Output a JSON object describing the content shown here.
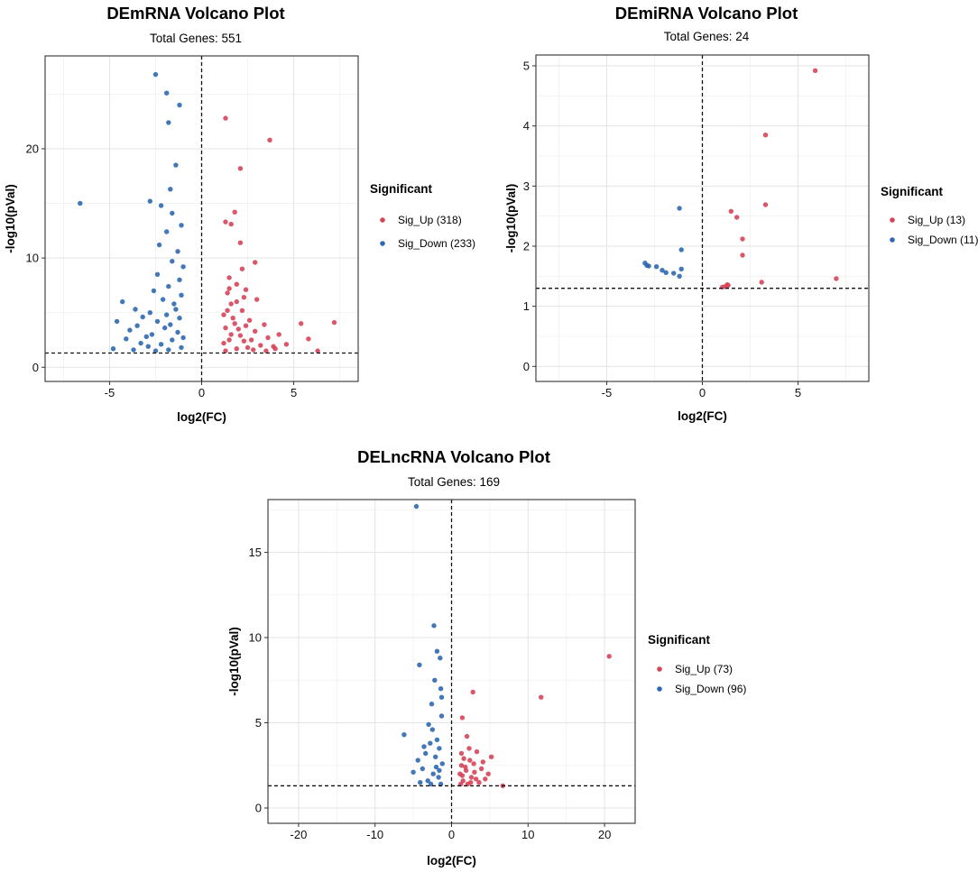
{
  "chart_data": [
    {
      "type": "scatter",
      "title": "DEmRNA Volcano Plot",
      "subtitle": "Total Genes: 551",
      "xlabel": "log2(FC)",
      "ylabel": "-log10(pVal)",
      "xlim": [
        -8.5,
        8.5
      ],
      "ylim": [
        -1.3,
        28.5
      ],
      "xticks": [
        -5,
        0,
        5
      ],
      "yticks": [
        0,
        10,
        20
      ],
      "threshold_x": 0,
      "threshold_y": 1.3,
      "legend_title": "Significant",
      "legend_position": "right",
      "series": [
        {
          "name": "Sig_Up",
          "label": "Sig_Up (318)",
          "color": "#d64458",
          "points": [
            [
              1.3,
              22.8
            ],
            [
              3.7,
              20.8
            ],
            [
              2.1,
              18.2
            ],
            [
              1.8,
              14.2
            ],
            [
              1.3,
              13.3
            ],
            [
              1.6,
              13.1
            ],
            [
              2.1,
              11.4
            ],
            [
              2.9,
              9.6
            ],
            [
              2.2,
              9.0
            ],
            [
              1.5,
              8.2
            ],
            [
              1.9,
              7.6
            ],
            [
              2.4,
              7.1
            ],
            [
              1.4,
              6.8
            ],
            [
              3.0,
              6.2
            ],
            [
              1.6,
              5.8
            ],
            [
              2.2,
              5.2
            ],
            [
              1.2,
              4.8
            ],
            [
              1.7,
              4.5
            ],
            [
              2.6,
              4.3
            ],
            [
              3.4,
              3.9
            ],
            [
              1.3,
              3.6
            ],
            [
              2.0,
              3.5
            ],
            [
              2.9,
              3.3
            ],
            [
              4.2,
              3.0
            ],
            [
              3.6,
              2.7
            ],
            [
              1.5,
              2.5
            ],
            [
              2.3,
              2.4
            ],
            [
              5.4,
              4.0
            ],
            [
              7.2,
              4.1
            ],
            [
              5.8,
              2.6
            ],
            [
              6.3,
              1.5
            ],
            [
              4.6,
              2.1
            ],
            [
              3.2,
              2.0
            ],
            [
              2.5,
              1.8
            ],
            [
              1.9,
              1.7
            ],
            [
              1.3,
              1.5
            ],
            [
              2.8,
              1.6
            ],
            [
              3.9,
              1.9
            ],
            [
              1.6,
              3.0
            ],
            [
              2.1,
              2.9
            ],
            [
              1.2,
              2.2
            ],
            [
              2.7,
              2.5
            ],
            [
              3.5,
              1.5
            ],
            [
              4.0,
              1.7
            ],
            [
              1.8,
              4.0
            ],
            [
              2.4,
              3.8
            ],
            [
              1.4,
              5.2
            ],
            [
              1.9,
              6.0
            ],
            [
              2.3,
              6.4
            ],
            [
              1.5,
              7.2
            ]
          ]
        },
        {
          "name": "Sig_Down",
          "label": "Sig_Down (233)",
          "color": "#2e68b0",
          "points": [
            [
              -2.5,
              26.8
            ],
            [
              -1.9,
              25.1
            ],
            [
              -1.2,
              24.0
            ],
            [
              -1.8,
              22.4
            ],
            [
              -1.4,
              18.5
            ],
            [
              -1.7,
              16.3
            ],
            [
              -2.2,
              14.8
            ],
            [
              -2.8,
              15.2
            ],
            [
              -6.6,
              15.0
            ],
            [
              -1.6,
              14.1
            ],
            [
              -1.1,
              13.0
            ],
            [
              -1.9,
              12.4
            ],
            [
              -2.3,
              11.2
            ],
            [
              -1.3,
              10.6
            ],
            [
              -1.6,
              9.7
            ],
            [
              -1.0,
              9.2
            ],
            [
              -2.4,
              8.5
            ],
            [
              -1.2,
              8.0
            ],
            [
              -1.8,
              7.4
            ],
            [
              -2.6,
              7.0
            ],
            [
              -1.1,
              6.6
            ],
            [
              -2.1,
              6.2
            ],
            [
              -4.3,
              6.0
            ],
            [
              -3.6,
              5.3
            ],
            [
              -1.5,
              5.8
            ],
            [
              -2.8,
              5.0
            ],
            [
              -3.2,
              4.6
            ],
            [
              -1.9,
              4.8
            ],
            [
              -2.4,
              4.2
            ],
            [
              -4.6,
              4.2
            ],
            [
              -3.9,
              3.4
            ],
            [
              -2.7,
              3.0
            ],
            [
              -4.1,
              2.6
            ],
            [
              -3.3,
              2.2
            ],
            [
              -4.8,
              1.7
            ],
            [
              -2.0,
              3.6
            ],
            [
              -1.3,
              3.2
            ],
            [
              -3.0,
              2.8
            ],
            [
              -1.6,
              2.5
            ],
            [
              -2.2,
              2.1
            ],
            [
              -1.1,
              1.8
            ],
            [
              -3.7,
              1.6
            ],
            [
              -2.5,
              1.5
            ],
            [
              -1.8,
              1.6
            ],
            [
              -1.2,
              4.5
            ],
            [
              -1.4,
              5.3
            ],
            [
              -1.0,
              2.7
            ],
            [
              -2.9,
              1.9
            ],
            [
              -3.5,
              3.8
            ],
            [
              -1.7,
              3.9
            ]
          ]
        }
      ]
    },
    {
      "type": "scatter",
      "title": "DEmiRNA Volcano Plot",
      "subtitle": "Total Genes: 24",
      "xlabel": "log2(FC)",
      "ylabel": "-log10(pVal)",
      "xlim": [
        -8.7,
        8.7
      ],
      "ylim": [
        -0.25,
        5.18
      ],
      "xticks": [
        -5,
        0,
        5
      ],
      "yticks": [
        0,
        1,
        2,
        3,
        4,
        5
      ],
      "threshold_x": 0,
      "threshold_y": 1.3,
      "legend_title": "Significant",
      "legend_position": "right",
      "series": [
        {
          "name": "Sig_Up",
          "label": "Sig_Up (13)",
          "color": "#d64458",
          "points": [
            [
              5.9,
              4.92
            ],
            [
              3.3,
              3.85
            ],
            [
              3.3,
              2.69
            ],
            [
              1.5,
              2.58
            ],
            [
              1.8,
              2.48
            ],
            [
              2.1,
              2.12
            ],
            [
              2.1,
              1.85
            ],
            [
              7.0,
              1.46
            ],
            [
              3.1,
              1.4
            ],
            [
              1.3,
              1.36
            ],
            [
              1.2,
              1.33
            ],
            [
              1.05,
              1.32
            ],
            [
              1.35,
              1.35
            ]
          ]
        },
        {
          "name": "Sig_Down",
          "label": "Sig_Down (11)",
          "color": "#2e68b0",
          "points": [
            [
              -1.2,
              2.63
            ],
            [
              -1.1,
              1.94
            ],
            [
              -3.0,
              1.72
            ],
            [
              -2.8,
              1.67
            ],
            [
              -2.4,
              1.66
            ],
            [
              -1.1,
              1.62
            ],
            [
              -2.1,
              1.6
            ],
            [
              -1.9,
              1.56
            ],
            [
              -1.5,
              1.55
            ],
            [
              -1.2,
              1.5
            ],
            [
              -2.9,
              1.68
            ]
          ]
        }
      ]
    },
    {
      "type": "scatter",
      "title": "DELncRNA Volcano Plot",
      "subtitle": "Total Genes: 169",
      "xlabel": "log2(FC)",
      "ylabel": "-log10(pVal)",
      "xlim": [
        -24,
        24
      ],
      "ylim": [
        -0.9,
        18.1
      ],
      "xticks": [
        -20,
        -10,
        0,
        10,
        20
      ],
      "yticks": [
        0,
        5,
        10,
        15
      ],
      "threshold_x": 0,
      "threshold_y": 1.3,
      "legend_title": "Significant",
      "legend_position": "right",
      "series": [
        {
          "name": "Sig_Up",
          "label": "Sig_Up (73)",
          "color": "#d64458",
          "points": [
            [
              20.6,
              8.9
            ],
            [
              11.7,
              6.5
            ],
            [
              2.8,
              6.8
            ],
            [
              1.4,
              5.3
            ],
            [
              2.0,
              4.2
            ],
            [
              4.1,
              2.7
            ],
            [
              5.2,
              3.0
            ],
            [
              3.3,
              3.3
            ],
            [
              1.3,
              3.2
            ],
            [
              2.4,
              2.8
            ],
            [
              1.8,
              2.4
            ],
            [
              3.0,
              2.1
            ],
            [
              1.1,
              2.0
            ],
            [
              2.6,
              1.8
            ],
            [
              4.4,
              1.7
            ],
            [
              1.5,
              1.6
            ],
            [
              3.6,
              1.5
            ],
            [
              2.1,
              1.4
            ],
            [
              6.7,
              1.3
            ],
            [
              1.2,
              1.4
            ],
            [
              3.9,
              2.3
            ],
            [
              2.9,
              2.6
            ],
            [
              1.6,
              2.9
            ],
            [
              2.3,
              3.5
            ],
            [
              4.8,
              2.0
            ],
            [
              1.4,
              1.9
            ],
            [
              3.2,
              1.7
            ],
            [
              2.5,
              1.5
            ],
            [
              1.9,
              2.2
            ],
            [
              1.3,
              2.5
            ]
          ]
        },
        {
          "name": "Sig_Down",
          "label": "Sig_Down (96)",
          "color": "#2e68b0",
          "points": [
            [
              -4.6,
              17.7
            ],
            [
              -2.3,
              10.7
            ],
            [
              -1.9,
              9.2
            ],
            [
              -1.5,
              8.8
            ],
            [
              -4.2,
              8.4
            ],
            [
              -2.2,
              7.5
            ],
            [
              -1.4,
              7.0
            ],
            [
              -2.6,
              6.1
            ],
            [
              -1.3,
              5.4
            ],
            [
              -3.0,
              4.9
            ],
            [
              -6.2,
              4.3
            ],
            [
              -2.8,
              3.8
            ],
            [
              -1.6,
              3.5
            ],
            [
              -3.4,
              3.2
            ],
            [
              -4.4,
              2.8
            ],
            [
              -2.1,
              3.0
            ],
            [
              -1.2,
              2.6
            ],
            [
              -3.8,
              2.3
            ],
            [
              -5.0,
              2.1
            ],
            [
              -2.4,
              2.0
            ],
            [
              -1.7,
              1.8
            ],
            [
              -3.1,
              1.6
            ],
            [
              -4.1,
              1.5
            ],
            [
              -1.4,
              1.4
            ],
            [
              -2.7,
              1.4
            ],
            [
              -1.9,
              4.0
            ],
            [
              -2.5,
              4.6
            ],
            [
              -1.3,
              6.5
            ],
            [
              -3.6,
              3.6
            ],
            [
              -2.0,
              2.4
            ],
            [
              -1.6,
              2.2
            ]
          ]
        }
      ]
    }
  ]
}
